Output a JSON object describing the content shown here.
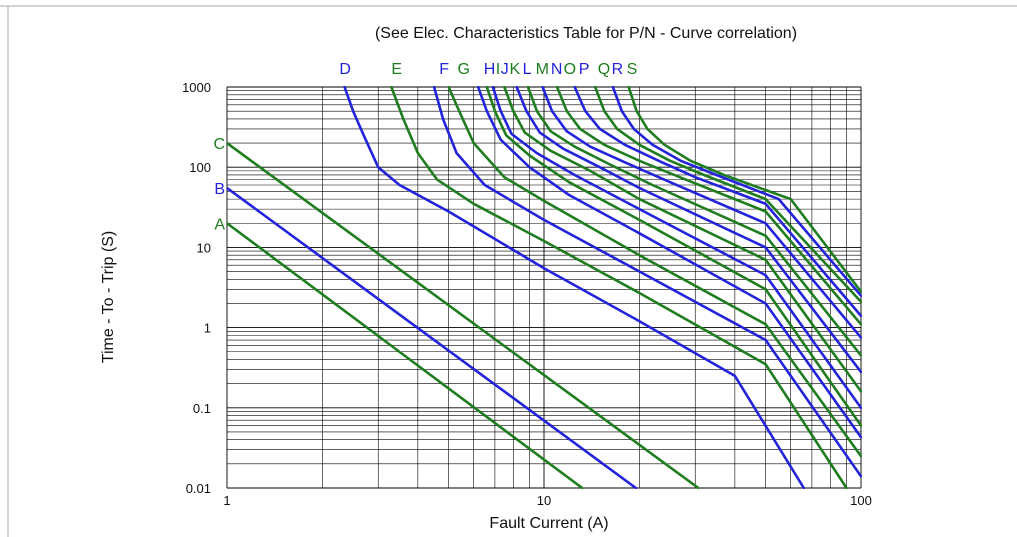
{
  "chart_data": {
    "type": "line",
    "title": "(See Elec. Characteristics Table for P/N - Curve correlation)",
    "xlabel": "Fault Current (A)",
    "ylabel": "Time - To - Trip (S)",
    "x_scale": "log",
    "y_scale": "log",
    "xlim": [
      1,
      100
    ],
    "ylim": [
      0.01,
      1000
    ],
    "x_ticks": [
      {
        "value": 1,
        "label": "1"
      },
      {
        "value": 10,
        "label": "10"
      },
      {
        "value": 100,
        "label": "100"
      }
    ],
    "y_ticks": [
      {
        "value": 1000,
        "label": "1000"
      },
      {
        "value": 100,
        "label": "100"
      },
      {
        "value": 10,
        "label": "10"
      },
      {
        "value": 1,
        "label": "1"
      },
      {
        "value": 0.1,
        "label": "0.1"
      },
      {
        "value": 0.01,
        "label": "0.01"
      }
    ],
    "grid": true,
    "colors": {
      "blue": "#2323dc",
      "green": "#1f7d1f"
    },
    "series": [
      {
        "name": "A",
        "color": "green",
        "points": [
          [
            1,
            20
          ],
          [
            13.2,
            0.01
          ]
        ]
      },
      {
        "name": "B",
        "color": "blue",
        "points": [
          [
            1,
            55
          ],
          [
            19.5,
            0.01
          ]
        ]
      },
      {
        "name": "C",
        "color": "green",
        "points": [
          [
            1,
            200
          ],
          [
            30.7,
            0.01
          ]
        ]
      },
      {
        "name": "D",
        "color": "blue",
        "points": [
          [
            2.35,
            1000
          ],
          [
            2.5,
            500
          ],
          [
            2.7,
            250
          ],
          [
            3.0,
            100
          ],
          [
            3.5,
            60
          ],
          [
            5,
            28
          ],
          [
            10,
            5.5
          ],
          [
            20,
            1.2
          ],
          [
            40,
            0.25
          ],
          [
            66,
            0.01
          ]
        ]
      },
      {
        "name": "E",
        "color": "green",
        "points": [
          [
            3.3,
            1000
          ],
          [
            3.6,
            400
          ],
          [
            4.0,
            150
          ],
          [
            4.6,
            70
          ],
          [
            6,
            35
          ],
          [
            10,
            12
          ],
          [
            20,
            2.7
          ],
          [
            50,
            0.35
          ],
          [
            90,
            0.01
          ]
        ]
      },
      {
        "name": "F",
        "color": "blue",
        "points": [
          [
            4.5,
            1000
          ],
          [
            4.8,
            400
          ],
          [
            5.3,
            150
          ],
          [
            6.5,
            60
          ],
          [
            10,
            22
          ],
          [
            20,
            5
          ],
          [
            50,
            0.7
          ],
          [
            100,
            0.014
          ]
        ]
      },
      {
        "name": "G",
        "color": "green",
        "points": [
          [
            5.0,
            1000
          ],
          [
            5.4,
            500
          ],
          [
            6.0,
            200
          ],
          [
            7.5,
            75
          ],
          [
            10,
            38
          ],
          [
            20,
            8
          ],
          [
            50,
            1.1
          ],
          [
            100,
            0.025
          ]
        ]
      },
      {
        "name": "H",
        "color": "blue",
        "points": [
          [
            6.2,
            1000
          ],
          [
            6.6,
            500
          ],
          [
            7.3,
            220
          ],
          [
            9,
            100
          ],
          [
            12,
            45
          ],
          [
            20,
            15
          ],
          [
            50,
            2
          ],
          [
            100,
            0.043
          ]
        ]
      },
      {
        "name": "I",
        "color": "green",
        "points": [
          [
            6.6,
            1000
          ],
          [
            7.0,
            500
          ],
          [
            7.6,
            250
          ],
          [
            9,
            140
          ],
          [
            12,
            65
          ],
          [
            20,
            22
          ],
          [
            50,
            3
          ],
          [
            100,
            0.06
          ]
        ]
      },
      {
        "name": "J",
        "color": "blue",
        "points": [
          [
            6.9,
            1000
          ],
          [
            7.3,
            500
          ],
          [
            7.9,
            260
          ],
          [
            9.5,
            150
          ],
          [
            12.5,
            80
          ],
          [
            20,
            30
          ],
          [
            50,
            4.5
          ],
          [
            100,
            0.1
          ]
        ]
      },
      {
        "name": "K",
        "color": "green",
        "points": [
          [
            7.5,
            1000
          ],
          [
            8.0,
            500
          ],
          [
            8.7,
            270
          ],
          [
            10.5,
            160
          ],
          [
            14,
            90
          ],
          [
            20,
            40
          ],
          [
            50,
            7
          ],
          [
            100,
            0.16
          ]
        ]
      },
      {
        "name": "L",
        "color": "blue",
        "points": [
          [
            8.2,
            1000
          ],
          [
            8.8,
            500
          ],
          [
            9.7,
            270
          ],
          [
            11.5,
            170
          ],
          [
            15,
            100
          ],
          [
            20,
            55
          ],
          [
            50,
            10
          ],
          [
            100,
            0.28
          ]
        ]
      },
      {
        "name": "M",
        "color": "green",
        "points": [
          [
            8.9,
            1000
          ],
          [
            9.5,
            500
          ],
          [
            10.5,
            280
          ],
          [
            12.5,
            180
          ],
          [
            16,
            110
          ],
          [
            22,
            60
          ],
          [
            50,
            14
          ],
          [
            100,
            0.45
          ]
        ]
      },
      {
        "name": "N",
        "color": "blue",
        "points": [
          [
            9.9,
            1000
          ],
          [
            10.6,
            500
          ],
          [
            11.8,
            280
          ],
          [
            14,
            180
          ],
          [
            18,
            115
          ],
          [
            25,
            65
          ],
          [
            50,
            20
          ],
          [
            100,
            0.75
          ]
        ]
      },
      {
        "name": "O",
        "color": "green",
        "points": [
          [
            11.0,
            1000
          ],
          [
            11.8,
            500
          ],
          [
            13.0,
            300
          ],
          [
            15.5,
            190
          ],
          [
            20,
            120
          ],
          [
            28,
            70
          ],
          [
            50,
            28
          ],
          [
            100,
            1.1
          ]
        ]
      },
      {
        "name": "P",
        "color": "blue",
        "points": [
          [
            12.5,
            1000
          ],
          [
            13.5,
            500
          ],
          [
            15.0,
            300
          ],
          [
            18,
            190
          ],
          [
            23,
            120
          ],
          [
            30,
            75
          ],
          [
            50,
            35
          ],
          [
            100,
            1.4
          ]
        ]
      },
      {
        "name": "Q",
        "color": "green",
        "points": [
          [
            14.5,
            1000
          ],
          [
            15.5,
            500
          ],
          [
            17,
            300
          ],
          [
            20,
            190
          ],
          [
            25,
            120
          ],
          [
            32,
            80
          ],
          [
            50,
            40
          ],
          [
            100,
            2.1
          ]
        ]
      },
      {
        "name": "R",
        "color": "blue",
        "points": [
          [
            16.5,
            1000
          ],
          [
            17.6,
            500
          ],
          [
            19.2,
            300
          ],
          [
            22,
            190
          ],
          [
            27,
            120
          ],
          [
            35,
            80
          ],
          [
            55,
            40
          ],
          [
            100,
            2.5
          ]
        ]
      },
      {
        "name": "S",
        "color": "green",
        "points": [
          [
            18.5,
            1000
          ],
          [
            19.6,
            500
          ],
          [
            21.2,
            300
          ],
          [
            24,
            190
          ],
          [
            29,
            120
          ],
          [
            37,
            80
          ],
          [
            60,
            40
          ],
          [
            100,
            2.8
          ]
        ]
      }
    ],
    "top_labels": [
      {
        "text": "D",
        "color": "blue",
        "x": 2.36
      },
      {
        "text": "E",
        "color": "green",
        "x": 3.43
      },
      {
        "text": "F",
        "color": "blue",
        "x": 4.84
      },
      {
        "text": "G",
        "color": "green",
        "x": 5.58
      },
      {
        "text": "H",
        "color": "blue",
        "x": 6.73
      },
      {
        "text": "I",
        "color": "green",
        "x": 7.16
      },
      {
        "text": "J",
        "color": "blue",
        "x": 7.52
      },
      {
        "text": "K",
        "color": "green",
        "x": 8.09
      },
      {
        "text": "L",
        "color": "blue",
        "x": 8.84
      },
      {
        "text": "M",
        "color": "green",
        "x": 9.88
      },
      {
        "text": "N",
        "color": "blue",
        "x": 10.96
      },
      {
        "text": "O",
        "color": "green",
        "x": 12.07
      },
      {
        "text": "P",
        "color": "blue",
        "x": 13.38
      },
      {
        "text": "Q",
        "color": "green",
        "x": 15.46
      },
      {
        "text": "R",
        "color": "blue",
        "x": 17.04
      },
      {
        "text": "S",
        "color": "green",
        "x": 18.95
      }
    ],
    "left_labels": [
      {
        "text": "C",
        "color": "green",
        "y": 200
      },
      {
        "text": "B",
        "color": "blue",
        "y": 55
      },
      {
        "text": "A",
        "color": "green",
        "y": 20
      }
    ]
  }
}
